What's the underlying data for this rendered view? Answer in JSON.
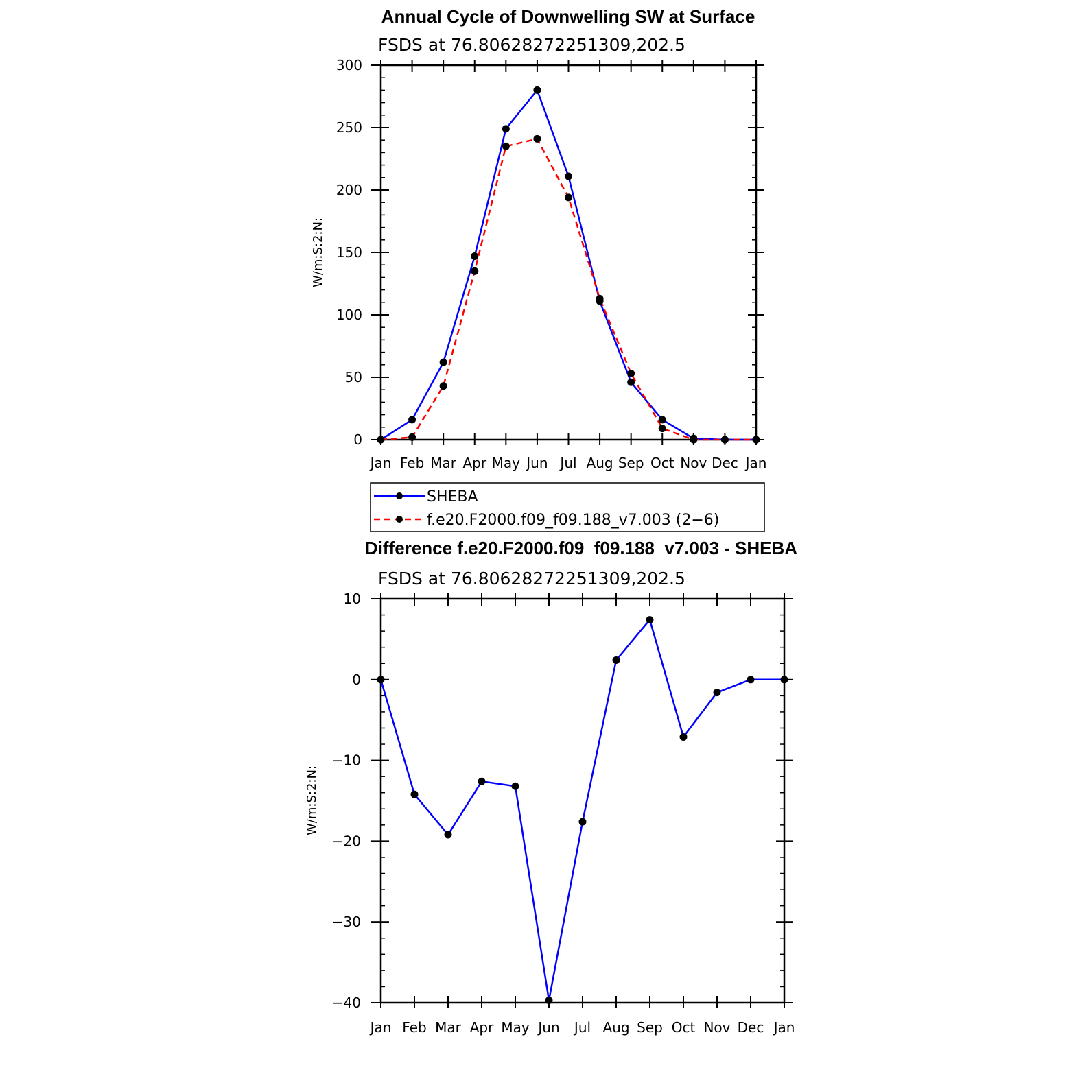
{
  "chart_data": [
    {
      "type": "line",
      "title": "Annual Cycle of Downwelling SW at Surface",
      "subtitle": "FSDS at 76.80628272251309,202.5",
      "ylabel": "W/m:S:2:N:",
      "xlabel": "",
      "categories": [
        "Jan",
        "Feb",
        "Mar",
        "Apr",
        "May",
        "Jun",
        "Jul",
        "Aug",
        "Sep",
        "Oct",
        "Nov",
        "Dec",
        "Jan"
      ],
      "ylim": [
        0,
        300
      ],
      "yticks": [
        "0",
        "50",
        "100",
        "150",
        "200",
        "250",
        "300"
      ],
      "legend": "bottom",
      "series": [
        {
          "name": "SHEBA",
          "color": "#0000ff",
          "dash": "solid",
          "values": [
            0,
            16,
            62,
            147,
            249,
            280,
            211,
            111,
            46,
            16,
            1,
            0,
            0
          ]
        },
        {
          "name": "f.e20.F2000.f09_f09.188_v7.003 (2−6)",
          "color": "#ff0000",
          "dash": "dashed",
          "values": [
            0,
            2,
            43,
            135,
            235,
            241,
            194,
            113,
            53,
            9,
            0,
            0,
            0
          ]
        }
      ]
    },
    {
      "type": "line",
      "title": "Difference f.e20.F2000.f09_f09.188_v7.003 - SHEBA",
      "subtitle": "FSDS at 76.80628272251309,202.5",
      "ylabel": "W/m:S:2:N:",
      "xlabel": "",
      "categories": [
        "Jan",
        "Feb",
        "Mar",
        "Apr",
        "May",
        "Jun",
        "Jul",
        "Aug",
        "Sep",
        "Oct",
        "Nov",
        "Dec",
        "Jan"
      ],
      "ylim": [
        -40,
        10
      ],
      "yticks": [
        "−40",
        "−30",
        "−20",
        "−10",
        "0",
        "10"
      ],
      "series": [
        {
          "color": "#0000ff",
          "dash": "solid",
          "values": [
            0,
            -14.2,
            -19.2,
            -12.6,
            -13.2,
            -39.7,
            -17.6,
            2.4,
            7.4,
            -7.1,
            -1.6,
            0,
            0
          ]
        }
      ]
    }
  ]
}
